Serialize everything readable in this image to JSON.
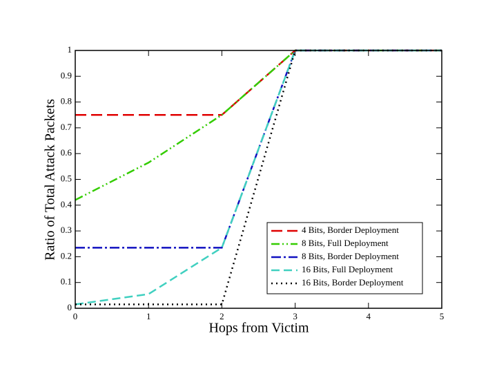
{
  "chart_data": {
    "type": "line",
    "x_label": "Hops from Victim",
    "y_label": "Ratio of Total Attack Packets",
    "x": [
      0,
      1,
      2,
      3,
      4,
      5
    ],
    "xlim": [
      0,
      5
    ],
    "xticks": [
      0,
      1,
      2,
      3,
      4,
      5
    ],
    "ylim": [
      0,
      1
    ],
    "yticks": [
      0,
      0.1,
      0.2,
      0.3,
      0.4,
      0.5,
      0.6,
      0.7,
      0.8,
      0.9,
      1
    ],
    "legend": "lower right",
    "series": [
      {
        "name": "4 Bits, Border Deployment",
        "color": "#e00000",
        "values": [
          0.75,
          0.75,
          0.75,
          1,
          1,
          1
        ]
      },
      {
        "name": "8 Bits, Full Deployment",
        "color": "#33cc00",
        "values": [
          0.42,
          0.565,
          0.75,
          1,
          1,
          1
        ]
      },
      {
        "name": "8 Bits, Border Deployment",
        "color": "#1010c0",
        "values": [
          0.235,
          0.235,
          0.235,
          1,
          1,
          1
        ]
      },
      {
        "name": "16 Bits, Full Deployment",
        "color": "#40d0c0",
        "values": [
          0.015,
          0.055,
          0.235,
          1,
          1,
          1
        ]
      },
      {
        "name": "16 Bits, Border Deployment",
        "color": "#000000",
        "values": [
          0.015,
          0.015,
          0.015,
          1,
          1,
          1
        ]
      }
    ]
  }
}
